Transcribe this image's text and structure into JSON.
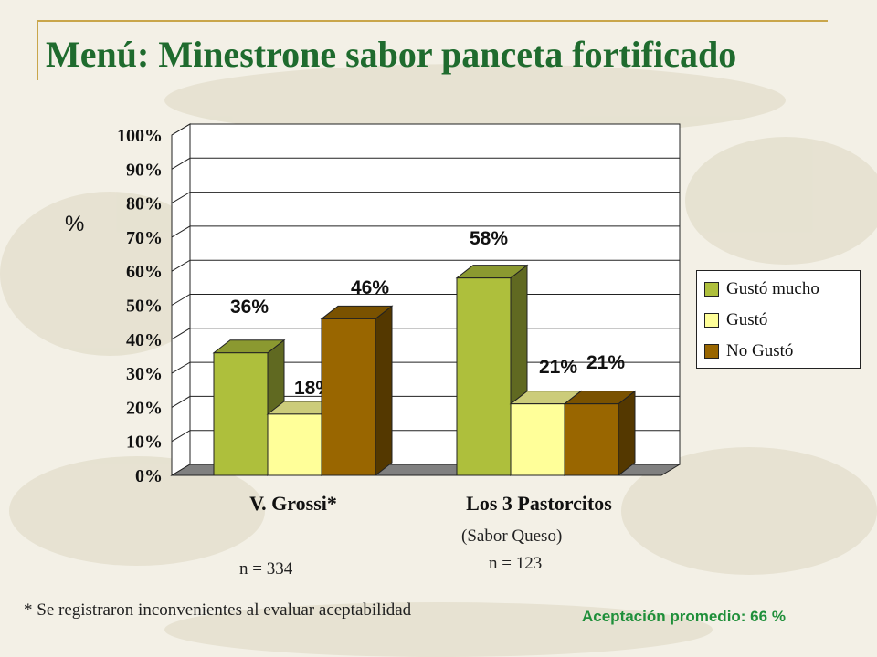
{
  "title": "Menú: Minestrone sabor panceta fortificado",
  "y_axis_symbol": "%",
  "chart_data": {
    "type": "bar",
    "categories": [
      "V. Grossi*",
      "Los 3 Pastorcitos"
    ],
    "series": [
      {
        "name": "Gustó mucho",
        "values": [
          36,
          58
        ],
        "color": "#aebf3c"
      },
      {
        "name": "Gustó",
        "values": [
          18,
          21
        ],
        "color": "#ffff99"
      },
      {
        "name": "No Gustó",
        "values": [
          46,
          21
        ],
        "color": "#996600"
      }
    ],
    "data_labels": [
      [
        "36%",
        "58%"
      ],
      [
        "18%",
        "21%"
      ],
      [
        "46%",
        "21%"
      ]
    ],
    "ylim": [
      0,
      100
    ],
    "yticks": [
      "0%",
      "10%",
      "20%",
      "30%",
      "40%",
      "50%",
      "60%",
      "70%",
      "80%",
      "90%",
      "100%"
    ],
    "grid": true,
    "legend_position": "right"
  },
  "notes": {
    "grossi_n": "n = 334",
    "pastorcitos_flavor": "(Sabor Queso)",
    "pastorcitos_n": "n = 123",
    "footnote": "* Se registraron inconvenientes al evaluar aceptabilidad",
    "average": "Aceptación promedio: 66 %"
  }
}
